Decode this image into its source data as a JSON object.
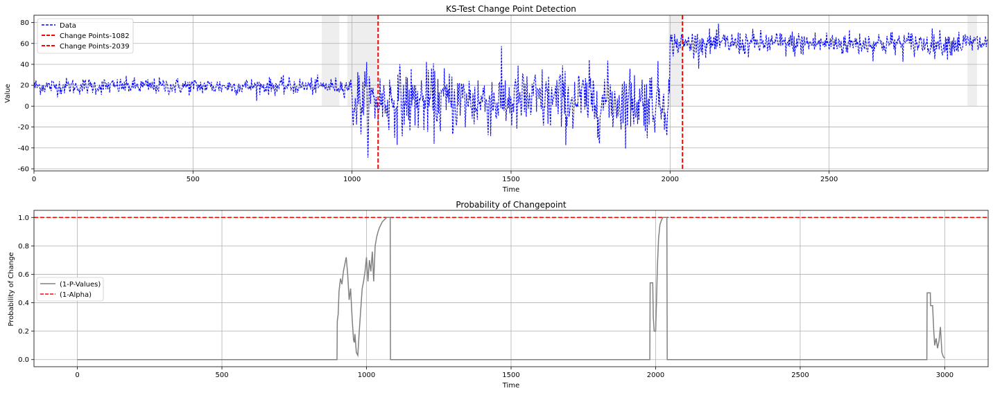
{
  "chart_data": [
    {
      "type": "line",
      "title": "KS-Test Change Point Detection",
      "xlabel": "Time",
      "ylabel": "Value",
      "xlim": [
        0,
        3000
      ],
      "ylim": [
        -62,
        87
      ],
      "xticks": [
        0,
        500,
        1000,
        1500,
        2000,
        2500
      ],
      "yticks": [
        -60,
        -40,
        -20,
        0,
        20,
        40,
        60,
        80
      ],
      "grid": true,
      "legend_position": "upper-left",
      "series": [
        {
          "name": "Data",
          "style": "dashed",
          "color": "#0000ff",
          "segments": [
            {
              "x_start": 0,
              "x_end": 1000,
              "mean": 19,
              "std": 4
            },
            {
              "x_start": 1000,
              "x_end": 2000,
              "mean": 5,
              "std": 16
            },
            {
              "x_start": 2000,
              "x_end": 3000,
              "mean": 60,
              "std": 6
            }
          ],
          "min": -56,
          "max": 87
        }
      ],
      "change_points": [
        {
          "name": "Change Points-1082",
          "x": 1082,
          "color": "#ff0000",
          "style": "dashed"
        },
        {
          "name": "Change Points-2039",
          "x": 2039,
          "color": "#ff0000",
          "style": "dashed"
        }
      ],
      "shaded_regions": [
        {
          "x_start": 905,
          "x_end": 960
        },
        {
          "x_start": 985,
          "x_end": 1080
        },
        {
          "x_start": 1995,
          "x_end": 2040
        },
        {
          "x_start": 2935,
          "x_end": 2965
        }
      ]
    },
    {
      "type": "line",
      "title": "Probability of Changepoint",
      "xlabel": "Time",
      "ylabel": "Probability of Change",
      "xlim": [
        -150,
        3150
      ],
      "ylim": [
        -0.05,
        1.05
      ],
      "xticks": [
        0,
        500,
        1000,
        1500,
        2000,
        2500,
        3000
      ],
      "yticks": [
        0.0,
        0.2,
        0.4,
        0.6,
        0.8,
        1.0
      ],
      "ytick_labels": [
        "0.0",
        "0.2",
        "0.4",
        "0.6",
        "0.8",
        "1.0"
      ],
      "grid": true,
      "legend_position": "center-left",
      "series": [
        {
          "name": "(1-P-Values)",
          "color": "#808080",
          "style": "solid",
          "x": [
            0,
            898,
            899,
            902,
            905,
            910,
            915,
            920,
            925,
            930,
            935,
            940,
            945,
            950,
            955,
            958,
            960,
            965,
            970,
            975,
            980,
            985,
            990,
            995,
            1000,
            1005,
            1010,
            1015,
            1020,
            1025,
            1030,
            1035,
            1040,
            1045,
            1050,
            1055,
            1060,
            1065,
            1070,
            1075,
            1080,
            1082,
            1083,
            1980,
            1981,
            1990,
            1992,
            1995,
            2000,
            2003,
            2006,
            2010,
            2015,
            2020,
            2025,
            2030,
            2035,
            2039,
            2040,
            2938,
            2939,
            2950,
            2951,
            2958,
            2962,
            2965,
            2970,
            2975,
            2980,
            2985,
            2990,
            2995,
            3000
          ],
          "y": [
            0,
            0,
            0.27,
            0.32,
            0.48,
            0.57,
            0.53,
            0.62,
            0.67,
            0.72,
            0.6,
            0.42,
            0.5,
            0.3,
            0.14,
            0.12,
            0.18,
            0.05,
            0.03,
            0.2,
            0.35,
            0.5,
            0.55,
            0.62,
            0.72,
            0.55,
            0.7,
            0.62,
            0.76,
            0.55,
            0.8,
            0.86,
            0.9,
            0.93,
            0.95,
            0.97,
            0.98,
            0.99,
            1.0,
            1.0,
            1.0,
            1.0,
            0,
            0,
            0.54,
            0.54,
            0.3,
            0.2,
            0.2,
            0.4,
            0.65,
            0.85,
            0.95,
            0.98,
            1.0,
            1.0,
            1.0,
            1.0,
            0,
            0,
            0.47,
            0.47,
            0.38,
            0.38,
            0.2,
            0.1,
            0.15,
            0.08,
            0.13,
            0.23,
            0.05,
            0.02,
            0.01
          ]
        }
      ],
      "hlines": [
        {
          "name": "(1-Alpha)",
          "y": 1.0,
          "color": "#ff0000",
          "style": "dashed"
        }
      ]
    }
  ]
}
